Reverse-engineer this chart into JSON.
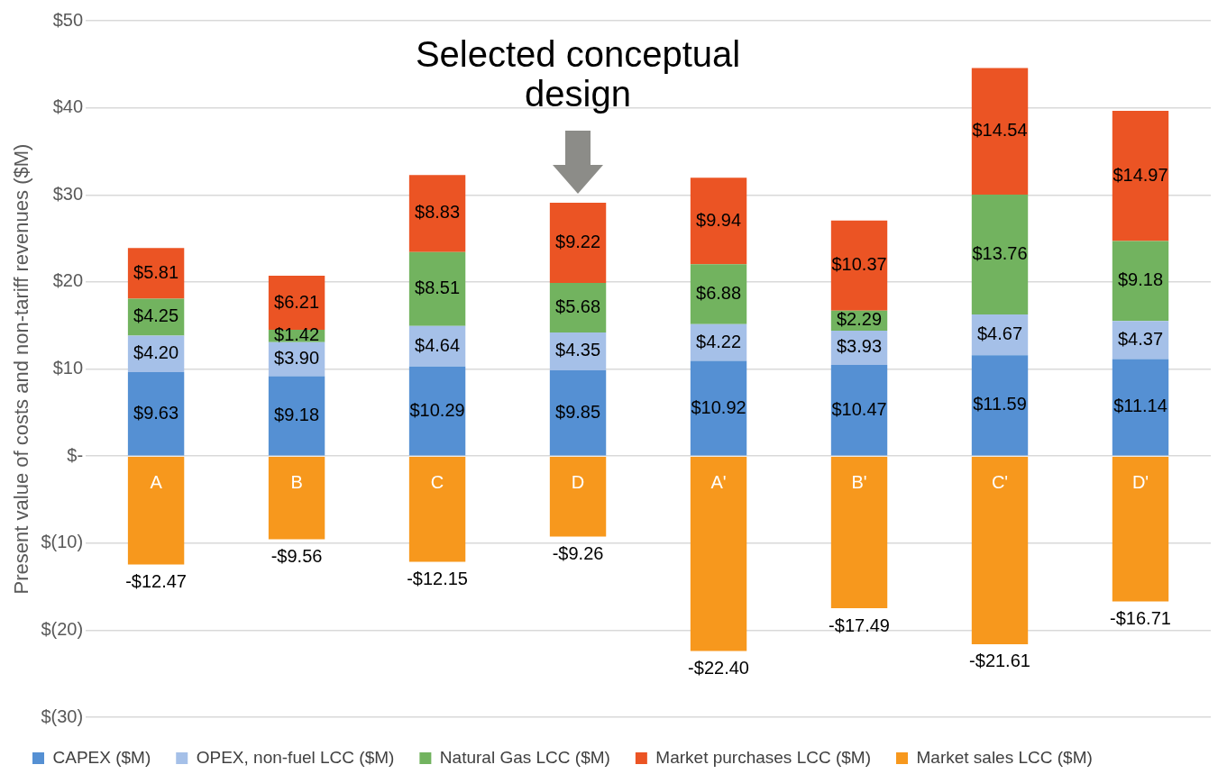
{
  "chart_data": {
    "type": "bar",
    "stacked": true,
    "ylabel": "Present value of costs and non-tariff revenues ($M)",
    "categories": [
      "A",
      "B",
      "C",
      "D",
      "A'",
      "B'",
      "C'",
      "D'"
    ],
    "series": [
      {
        "name": "CAPEX ($M)",
        "color": "#5590d3",
        "values": [
          9.63,
          9.18,
          10.29,
          9.85,
          10.92,
          10.47,
          11.59,
          11.14
        ],
        "value_labels": [
          "$9.63",
          "$9.18",
          "$10.29",
          "$9.85",
          "$10.92",
          "$10.47",
          "$11.59",
          "$11.14"
        ]
      },
      {
        "name": "OPEX, non-fuel LCC ($M)",
        "color": "#a5c0e8",
        "values": [
          4.2,
          3.9,
          4.64,
          4.35,
          4.22,
          3.93,
          4.67,
          4.37
        ],
        "value_labels": [
          "$4.20",
          "$3.90",
          "$4.64",
          "$4.35",
          "$4.22",
          "$3.93",
          "$4.67",
          "$4.37"
        ]
      },
      {
        "name": "Natural Gas LCC ($M)",
        "color": "#72b35f",
        "values": [
          4.25,
          1.42,
          8.51,
          5.68,
          6.88,
          2.29,
          13.76,
          9.18
        ],
        "value_labels": [
          "$4.25",
          "$1.42",
          "$8.51",
          "$5.68",
          "$6.88",
          "$2.29",
          "$13.76",
          "$9.18"
        ]
      },
      {
        "name": "Market purchases LCC ($M)",
        "color": "#eb5424",
        "values": [
          5.81,
          6.21,
          8.83,
          9.22,
          9.94,
          10.37,
          14.54,
          14.97
        ],
        "value_labels": [
          "$5.81",
          "$6.21",
          "$8.83",
          "$9.22",
          "$9.94",
          "$10.37",
          "$14.54",
          "$14.97"
        ]
      },
      {
        "name": "Market sales LCC ($M)",
        "color": "#f7981d",
        "values": [
          -12.47,
          -9.56,
          -12.15,
          -9.26,
          -22.4,
          -17.49,
          -21.61,
          -16.71
        ],
        "value_labels": [
          "-$12.47",
          "-$9.56",
          "-$12.15",
          "-$9.26",
          "-$22.40",
          "-$17.49",
          "-$21.61",
          "-$16.71"
        ]
      }
    ],
    "ylim": [
      -30,
      50
    ],
    "yticks": [
      {
        "value": -30,
        "label": "$(30)"
      },
      {
        "value": -20,
        "label": "$(20)"
      },
      {
        "value": -10,
        "label": "$(10)"
      },
      {
        "value": 0,
        "label": "$-"
      },
      {
        "value": 10,
        "label": "$10"
      },
      {
        "value": 20,
        "label": "$20"
      },
      {
        "value": 30,
        "label": "$30"
      },
      {
        "value": 40,
        "label": "$40"
      },
      {
        "value": 50,
        "label": "$50"
      }
    ],
    "grid": "y",
    "legend": "bottom",
    "annotations": [
      {
        "text": "Selected conceptual design",
        "x": "D",
        "y": 29.07
      }
    ]
  }
}
